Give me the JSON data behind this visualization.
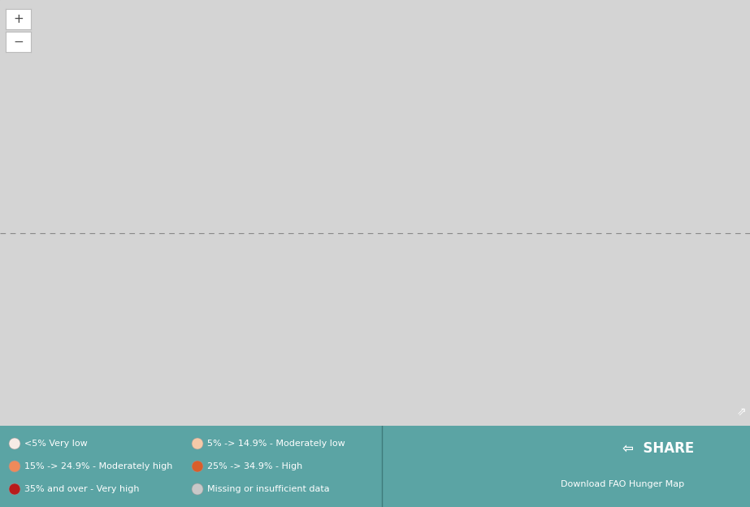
{
  "background_color": "#5ba4a4",
  "land_default_color": "#d4d4d4",
  "land_border_color": "#aaaaaa",
  "ocean_color": "#5ba4a4",
  "legend_bg_color": "#4e8f8f",
  "legend_text_color": "#ffffff",
  "legend_items": [
    {
      "label": "<5% Very low",
      "color": "#f7ebe6"
    },
    {
      "label": "5% -> 14.9% - Moderately low",
      "color": "#f5c9a8"
    },
    {
      "label": "15% -> 24.9% - Moderately high",
      "color": "#ee8a5a"
    },
    {
      "label": "25% -> 34.9% - High",
      "color": "#d95e2b"
    },
    {
      "label": "35% and over - Very high",
      "color": "#b81c1c"
    },
    {
      "label": "Missing or insufficient data",
      "color": "#c8c8c8"
    }
  ],
  "share_text": "SHARE",
  "download_text": "Download FAO Hunger Map",
  "equator_color": "#888888",
  "country_colors": {
    "Niger": "#f5c9a8",
    "Mali": "#f5c9a8",
    "Chad": "#f5c9a8",
    "Sudan": "#f7ebe6",
    "South Sudan": "#d95e2b",
    "Ethiopia": "#d95e2b",
    "Eritrea": "#f5c9a8",
    "Djibouti": "#f5c9a8",
    "Somalia": "#ee8a5a",
    "Uganda": "#ee8a5a",
    "Kenya": "#f5c9a8",
    "Rwanda": "#d95e2b",
    "Burundi": "#d95e2b",
    "Tanzania": "#ee8a5a",
    "Mozambique": "#ee8a5a",
    "Malawi": "#d95e2b",
    "Zambia": "#ee8a5a",
    "Zimbabwe": "#b81c1c",
    "Angola": "#ee8a5a",
    "Namibia": "#f5c9a8",
    "South Africa": "#f7ebe6",
    "Madagascar": "#ee8a5a",
    "Dem. Rep. Congo": "#b81c1c",
    "Central African Rep.": "#d95e2b",
    "Cameroon": "#f5c9a8",
    "Nigeria": "#f5c9a8",
    "Ghana": "#f5c9a8",
    "Senegal": "#f5c9a8",
    "Guinea": "#ee8a5a",
    "Sierra Leone": "#ee8a5a",
    "Liberia": "#d95e2b",
    "Ivory Coast": "#f5c9a8",
    "Burkina Faso": "#f5c9a8",
    "Togo": "#f5c9a8",
    "Benin": "#f5c9a8",
    "Gambia": "#f5c9a8",
    "Guinea-Bissau": "#f5c9a8",
    "Congo": "#f5c9a8",
    "Gabon": "#f7ebe6",
    "Eq. Guinea": "#f7ebe6",
    "Haiti": "#b81c1c",
    "Yemen": "#d95e2b",
    "Afghanistan": "#d95e2b",
    "Bangladesh": "#f5c9a8",
    "Nepal": "#f5c9a8",
    "Myanmar": "#f5c9a8",
    "Cambodia": "#f5c9a8",
    "Laos": "#f5c9a8",
    "North Korea": "#ee8a5a",
    "Mauritania": "#f5c9a8",
    "Guatemala": "#f5c9a8",
    "Honduras": "#f5c9a8",
    "Nicaragua": "#f5c9a8",
    "Bolivia": "#f5c9a8",
    "Papua New Guinea": "#f5c9a8",
    "Timor-Leste": "#ee8a5a",
    "Iraq": "#f5c9a8",
    "Syria": "#f5c9a8",
    "Libya": "#f7ebe6",
    "Morocco": "#f7ebe6",
    "Algeria": "#f7ebe6",
    "Egypt": "#f7ebe6",
    "Swaziland": "#d95e2b",
    "Lesotho": "#d95e2b",
    "eSwatini": "#d95e2b",
    "Botswana": "#f7ebe6",
    "W. Sahara": "#c8c8c8"
  }
}
